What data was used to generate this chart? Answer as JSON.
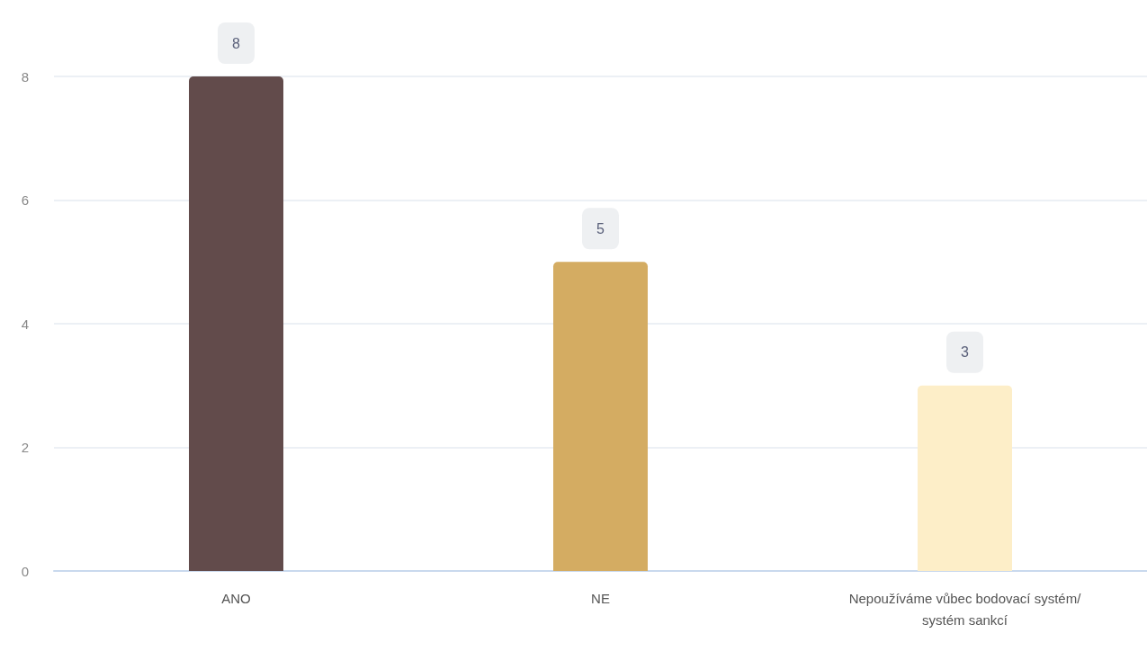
{
  "chart_data": {
    "type": "bar",
    "categories": [
      "ANO",
      "NE",
      "Nepoužíváme vůbec bodovací systém/systém sankcí"
    ],
    "values": [
      8,
      5,
      3
    ],
    "colors": [
      "#624b4b",
      "#d4ac62",
      "#fdeec8"
    ],
    "ylim": [
      0,
      8
    ],
    "yticks": [
      0,
      2,
      4,
      6,
      8
    ],
    "grid": "y",
    "data_labels": true
  }
}
